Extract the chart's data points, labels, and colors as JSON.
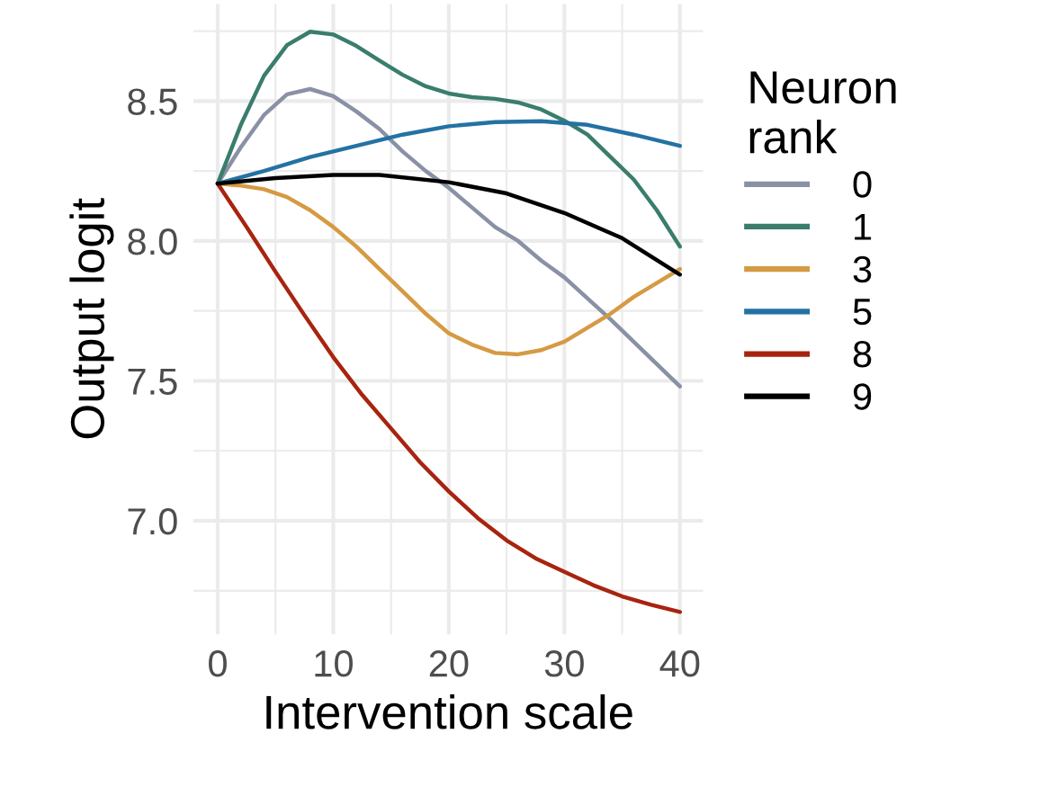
{
  "chart_data": {
    "type": "line",
    "xlabel": "Intervention scale",
    "ylabel": "Output logit",
    "legend_title": "Neuron\nrank",
    "legend": "right",
    "grid": true,
    "xlim": [
      -2.1,
      42
    ],
    "ylim": [
      6.594,
      8.847
    ],
    "xticks": [
      0,
      10,
      20,
      30,
      40
    ],
    "yticks": [
      {
        "value": 7.0,
        "label": "7.0"
      },
      {
        "value": 7.5,
        "label": "7.5"
      },
      {
        "value": 8.0,
        "label": "8.0"
      },
      {
        "value": 8.5,
        "label": "8.5"
      }
    ],
    "series": [
      {
        "name": "0",
        "color": "#8a91a6",
        "x": [
          0,
          2,
          4,
          6,
          8,
          10,
          12,
          14,
          16,
          18,
          20,
          22,
          24,
          26,
          28,
          30,
          34,
          40
        ],
        "values": [
          8.205,
          8.335,
          8.45,
          8.524,
          8.543,
          8.518,
          8.463,
          8.4,
          8.32,
          8.25,
          8.19,
          8.12,
          8.05,
          8.0,
          7.93,
          7.87,
          7.72,
          7.48
        ]
      },
      {
        "name": "1",
        "color": "#3a7d6d",
        "x": [
          0,
          2,
          4,
          6,
          8,
          10,
          12,
          14,
          16,
          18,
          20,
          22,
          24,
          26,
          28,
          30,
          32,
          34,
          36,
          38,
          40
        ],
        "values": [
          8.205,
          8.415,
          8.59,
          8.7,
          8.748,
          8.738,
          8.697,
          8.645,
          8.594,
          8.553,
          8.527,
          8.514,
          8.508,
          8.495,
          8.47,
          8.43,
          8.38,
          8.3,
          8.22,
          8.11,
          7.98
        ]
      },
      {
        "name": "3",
        "color": "#d59a43",
        "x": [
          0,
          2,
          4,
          6,
          8,
          10,
          12,
          14,
          16,
          18,
          20,
          22,
          24,
          26,
          28,
          30,
          32,
          34,
          36,
          38,
          40
        ],
        "values": [
          8.205,
          8.198,
          8.185,
          8.157,
          8.11,
          8.05,
          7.98,
          7.9,
          7.82,
          7.74,
          7.67,
          7.63,
          7.6,
          7.595,
          7.61,
          7.64,
          7.69,
          7.74,
          7.8,
          7.85,
          7.9
        ]
      },
      {
        "name": "5",
        "color": "#2472a3",
        "x": [
          0,
          4,
          8,
          12,
          16,
          20,
          24,
          28,
          32,
          36,
          40
        ],
        "values": [
          8.205,
          8.25,
          8.3,
          8.34,
          8.38,
          8.41,
          8.425,
          8.428,
          8.415,
          8.38,
          8.34
        ]
      },
      {
        "name": "8",
        "color": "#a8240f",
        "x": [
          0,
          2.5,
          5,
          7.5,
          10,
          12.5,
          15,
          17.5,
          20,
          22.5,
          25,
          27.5,
          30,
          32.5,
          35,
          37.5,
          40
        ],
        "values": [
          8.205,
          8.05,
          7.89,
          7.735,
          7.585,
          7.45,
          7.33,
          7.21,
          7.105,
          7.01,
          6.93,
          6.866,
          6.818,
          6.77,
          6.73,
          6.7,
          6.674
        ]
      },
      {
        "name": "9",
        "color": "#000000",
        "x": [
          0,
          5,
          10,
          14,
          20,
          25,
          30,
          35,
          40
        ],
        "values": [
          8.205,
          8.225,
          8.236,
          8.236,
          8.21,
          8.17,
          8.1,
          8.01,
          7.88
        ]
      }
    ]
  }
}
